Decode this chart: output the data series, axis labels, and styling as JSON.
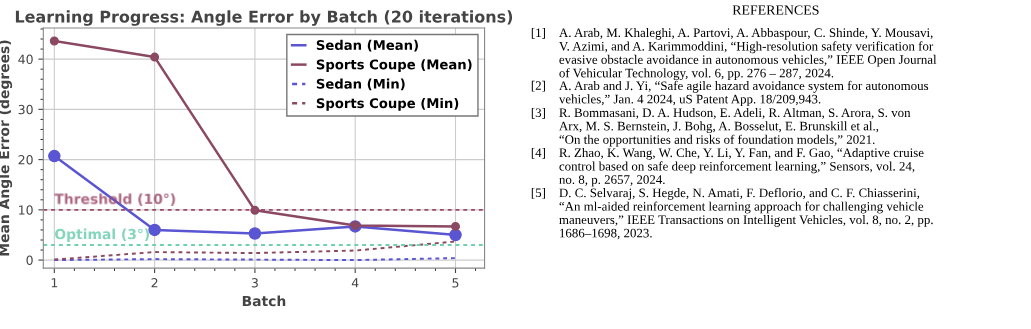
{
  "chart_data": [
    {
      "type": "line",
      "title": "Learning Progress: Angle Error by Batch (20 iterations)",
      "xlabel": "Batch",
      "ylabel": "Mean Angle Error (degrees)",
      "x": [
        1,
        2,
        3,
        4,
        5
      ],
      "xlim": [
        0.89,
        5.29
      ],
      "xticks": [
        1,
        2,
        3,
        4,
        5
      ],
      "ylim": [
        -1.6,
        46.2
      ],
      "yticks": [
        0,
        10,
        20,
        30,
        40
      ],
      "grid": true,
      "legend": "top right",
      "series": [
        {
          "name": "Sedan (Mean)",
          "color": "#5a55d2",
          "values": [
            20.7,
            6.0,
            5.3,
            6.7,
            5.0
          ],
          "marker": "circle",
          "line_style": "solid"
        },
        {
          "name": "Sports Coupe (Mean)",
          "color": "#8b4862",
          "values": [
            43.6,
            40.4,
            9.9,
            6.9,
            6.7
          ],
          "marker": "circle",
          "line_style": "solid"
        },
        {
          "name": "Sedan (Min)",
          "color": "#5a55d2",
          "values": [
            0.0,
            0.2,
            0.1,
            0.0,
            0.4
          ],
          "marker": "none",
          "line_style": "dotted"
        },
        {
          "name": "Sports Coupe (Min)",
          "color": "#8b4862",
          "values": [
            0.1,
            1.6,
            1.4,
            1.9,
            3.7
          ],
          "marker": "none",
          "line_style": "dotted"
        }
      ],
      "ref_lines": [
        {
          "axis": "y",
          "value": 10,
          "label": "Threshold (10°)",
          "color": "#9a4a6a",
          "line_style": "dotted"
        },
        {
          "axis": "y",
          "value": 3,
          "label": "Optimal (3°)",
          "color": "#6fcfae",
          "line_style": "dotted"
        }
      ]
    },
    {
      "type": "other",
      "title": "REFERENCES",
      "annotations": [
        "[1] A. Arab, M. Khaleghi, A. Partovi, A. Abbaspour, C. Shinde, Y. Mousavi,\nV. Azimi, and A. Karimmoddini, “High-resolution safety verification for\nevasive obstacle avoidance in autonomous vehicles,” IEEE Open Journal\nof Vehicular Technology, vol. 6, pp. 276 – 287, 2024.",
        "[2] A. Arab and J. Yi, “Safe agile hazard avoidance system for autonomous\nvehicles,” Jan. 4 2024, uS Patent App. 18/209,943.",
        "[3] R. Bommasani, D. A. Hudson, E. Adeli, R. Altman, S. Arora, S. von\nArx, M. S. Bernstein, J. Bohg, A. Bosselut, E. Brunskill et al.,\n“On the opportunities and risks of foundation models,” 2021.",
        "[4] R. Zhao, K. Wang, W. Che, Y. Li, Y. Fan, and F. Gao, “Adaptive cruise\ncontrol based on safe deep reinforcement learning,” Sensors, vol. 24,\nno. 8, p. 2657, 2024.",
        "[5] D. C. Selvaraj, S. Hegde, N. Amati, F. Deflorio, and C. F. Chiasserini,\n“An ml-aided reinforcement learning approach for challenging vehicle\nmaneuvers,” IEEE Transactions on Intelligent Vehicles, vol. 8, no. 2, pp.\n1686–1698, 2023."
      ]
    }
  ]
}
